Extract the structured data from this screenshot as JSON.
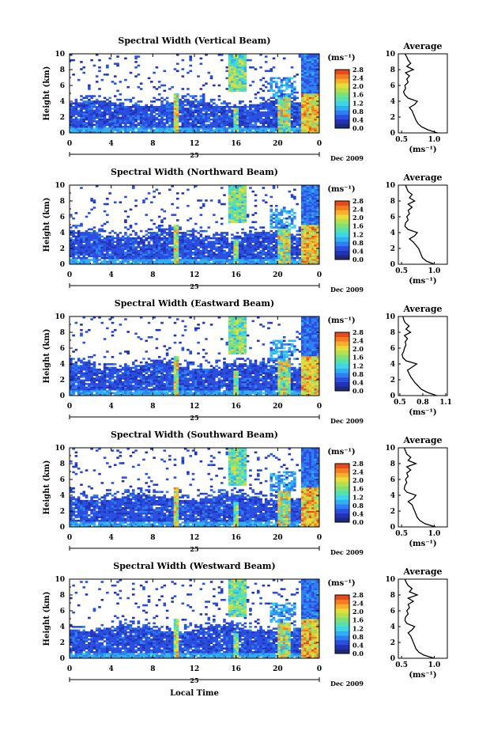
{
  "colors": {
    "colormap": [
      "#1e2a78",
      "#2233b8",
      "#2a4fe0",
      "#2f7ff0",
      "#30b0f2",
      "#3ed6e6",
      "#54e0b0",
      "#7fe07a",
      "#b4e050",
      "#e6dc3a",
      "#f8b02c",
      "#f37c22",
      "#e84a1c"
    ],
    "white": "#ffffff",
    "ink": "#000000"
  },
  "xlabel": "Local Time",
  "colorbar": {
    "unit": "(ms⁻¹)",
    "ticks": [
      "0.0",
      "0.4",
      "0.8",
      "1.2",
      "1.6",
      "2.0",
      "2.4",
      "2.8"
    ]
  },
  "panels": [
    {
      "title": "Spectral Width (Vertical Beam)",
      "avg_ticks": [
        "0.5",
        "1.0"
      ],
      "avg_xlim": [
        0.45,
        1.2
      ],
      "avg_profile": {
        "heights": [
          0,
          0.4,
          0.8,
          1.2,
          1.6,
          2.0,
          2.4,
          2.8,
          3.2,
          3.6,
          4.0,
          4.4,
          4.8,
          5.2,
          5.6,
          6.0,
          6.4,
          6.8,
          7.2,
          7.6,
          8.0,
          8.4,
          8.8,
          9.2,
          9.6,
          10.0
        ],
        "values": [
          1.05,
          0.9,
          0.8,
          0.75,
          0.72,
          0.7,
          0.68,
          0.66,
          0.62,
          0.7,
          0.74,
          0.6,
          0.55,
          0.53,
          0.56,
          0.55,
          0.6,
          0.58,
          0.62,
          0.56,
          0.68,
          0.58,
          0.64,
          0.6,
          0.58,
          0.55
        ]
      }
    },
    {
      "title": "Spectral Width (Northward Beam)",
      "avg_ticks": [
        "0.5",
        "1.0"
      ],
      "avg_xlim": [
        0.45,
        1.2
      ],
      "avg_profile": {
        "heights": [
          0,
          0.4,
          0.8,
          1.2,
          1.6,
          2.0,
          2.4,
          2.8,
          3.2,
          3.6,
          4.0,
          4.4,
          4.8,
          5.2,
          5.6,
          6.0,
          6.4,
          6.8,
          7.2,
          7.6,
          8.0,
          8.4,
          8.8,
          9.2,
          9.6,
          10.0
        ],
        "values": [
          1.0,
          0.88,
          0.82,
          0.8,
          0.78,
          0.76,
          0.72,
          0.68,
          0.62,
          0.7,
          0.74,
          0.6,
          0.55,
          0.56,
          0.6,
          0.58,
          0.62,
          0.6,
          0.66,
          0.6,
          0.7,
          0.62,
          0.66,
          0.6,
          0.58,
          0.56
        ]
      }
    },
    {
      "title": "Spectral Width (Eastward Beam)",
      "avg_ticks": [
        "0.5",
        "0.8",
        "1.1"
      ],
      "avg_xlim": [
        0.48,
        1.12
      ],
      "avg_profile": {
        "heights": [
          0,
          0.4,
          0.8,
          1.2,
          1.6,
          2.0,
          2.4,
          2.8,
          3.2,
          3.6,
          4.0,
          4.4,
          4.8,
          5.2,
          5.6,
          6.0,
          6.4,
          6.8,
          7.2,
          7.6,
          8.0,
          8.4,
          8.8,
          9.2,
          9.6,
          10.0
        ],
        "values": [
          0.98,
          0.86,
          0.78,
          0.74,
          0.7,
          0.67,
          0.64,
          0.62,
          0.6,
          0.66,
          0.72,
          0.58,
          0.54,
          0.53,
          0.55,
          0.56,
          0.58,
          0.57,
          0.6,
          0.56,
          0.64,
          0.58,
          0.62,
          0.57,
          0.55,
          0.54
        ]
      }
    },
    {
      "title": "Spectral Width (Southward Beam)",
      "avg_ticks": [
        "0.5",
        "1.0"
      ],
      "avg_xlim": [
        0.45,
        1.2
      ],
      "avg_profile": {
        "heights": [
          0,
          0.4,
          0.8,
          1.2,
          1.6,
          2.0,
          2.4,
          2.8,
          3.2,
          3.6,
          4.0,
          4.4,
          4.8,
          5.2,
          5.6,
          6.0,
          6.4,
          6.8,
          7.2,
          7.6,
          8.0,
          8.4,
          8.8,
          9.2,
          9.6,
          10.0
        ],
        "values": [
          1.02,
          0.86,
          0.78,
          0.74,
          0.72,
          0.7,
          0.68,
          0.66,
          0.6,
          0.68,
          0.72,
          0.58,
          0.54,
          0.55,
          0.58,
          0.56,
          0.6,
          0.58,
          0.64,
          0.58,
          0.72,
          0.6,
          0.64,
          0.58,
          0.56,
          0.54
        ]
      }
    },
    {
      "title": "Spectral Width (Westward Beam)",
      "avg_ticks": [
        "0.5",
        "1.0"
      ],
      "avg_xlim": [
        0.45,
        1.2
      ],
      "avg_profile": {
        "heights": [
          0,
          0.4,
          0.8,
          1.2,
          1.6,
          2.0,
          2.4,
          2.8,
          3.2,
          3.6,
          4.0,
          4.4,
          4.8,
          5.2,
          5.6,
          6.0,
          6.4,
          6.8,
          7.2,
          7.6,
          8.0,
          8.4,
          8.8,
          9.2,
          9.6,
          10.0
        ],
        "values": [
          1.0,
          0.84,
          0.76,
          0.72,
          0.7,
          0.68,
          0.66,
          0.64,
          0.6,
          0.66,
          0.7,
          0.58,
          0.55,
          0.56,
          0.6,
          0.58,
          0.62,
          0.6,
          0.68,
          0.6,
          0.74,
          0.62,
          0.66,
          0.6,
          0.57,
          0.55
        ]
      }
    }
  ],
  "chart_data": {
    "type": "heatmap",
    "ylabel": "Height (km)",
    "xlabel": "Local Time",
    "xticks": [
      "0",
      "4",
      "8",
      "12",
      "16",
      "20",
      "0"
    ],
    "yticks": [
      "0",
      "2",
      "4",
      "6",
      "8",
      "10"
    ],
    "ylim": [
      0,
      10
    ],
    "xlim": [
      0,
      24
    ],
    "date_label": "25",
    "month_label": "Dec 2009",
    "avg_title": "Average",
    "avg_xlabel": "(ms⁻¹)",
    "colorbar_range": [
      0.0,
      2.8
    ]
  }
}
